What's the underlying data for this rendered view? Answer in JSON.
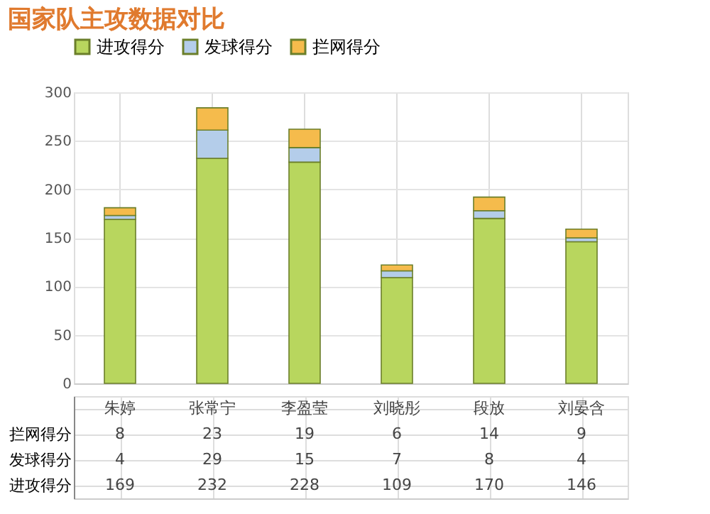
{
  "chart_data": {
    "type": "bar",
    "title": "国家队主攻数据对比",
    "stacked": true,
    "categories": [
      "朱婷",
      "张常宁",
      "李盈莹",
      "刘晓彤",
      "段放",
      "刘晏含"
    ],
    "series": [
      {
        "name": "进攻得分",
        "color": "#b8d65e",
        "values": [
          169,
          232,
          228,
          109,
          170,
          146
        ]
      },
      {
        "name": "发球得分",
        "color": "#b4cdea",
        "values": [
          4,
          29,
          15,
          7,
          8,
          4
        ]
      },
      {
        "name": "拦网得分",
        "color": "#f5bb4c",
        "values": [
          8,
          23,
          19,
          6,
          14,
          9
        ]
      }
    ],
    "ylim": [
      0,
      300
    ],
    "yticks": [
      0,
      50,
      100,
      150,
      200,
      250,
      300
    ],
    "grid": true,
    "legend": "top",
    "data_labels": true
  }
}
